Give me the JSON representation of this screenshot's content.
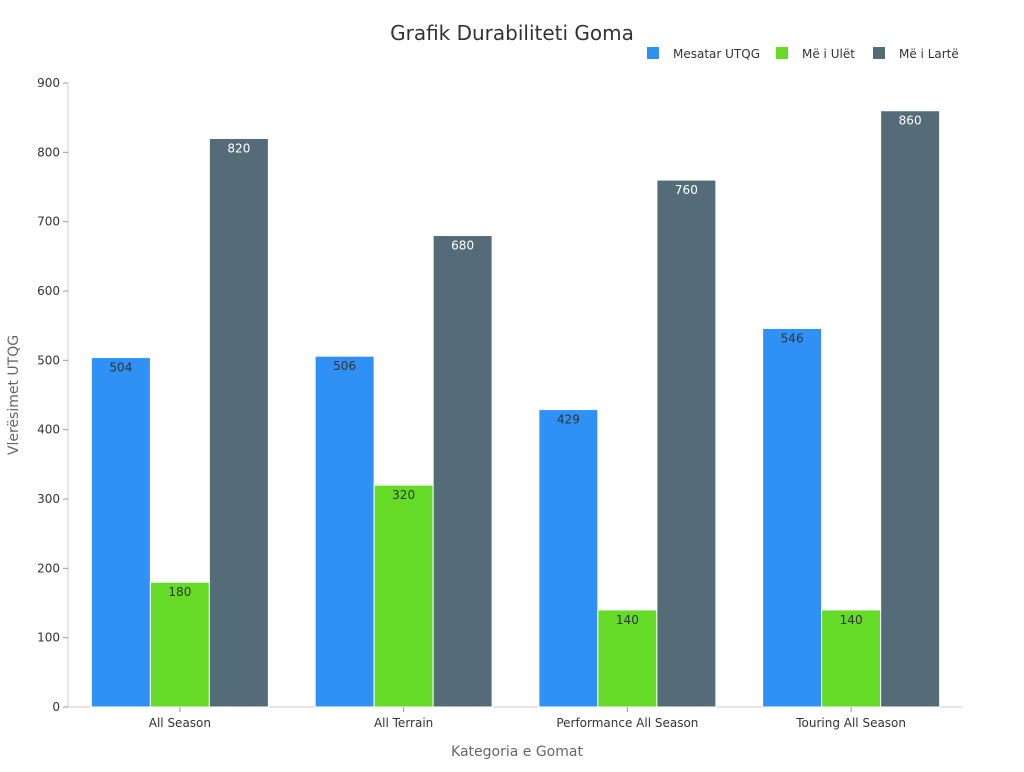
{
  "chart_data": {
    "type": "bar",
    "title": "Grafik Durabiliteti Goma",
    "xlabel": "Kategoria e Gomat",
    "ylabel": "Vlerësimet UTQG",
    "categories": [
      "All Season",
      "All Terrain",
      "Performance All Season",
      "Touring All Season"
    ],
    "series": [
      {
        "name": "Mesatar UTQG",
        "color": "#2F91F5",
        "label_color": "#333333",
        "values": [
          504,
          506,
          429,
          546
        ]
      },
      {
        "name": "Më i Ulët",
        "color": "#66DB27",
        "label_color": "#333333",
        "values": [
          180,
          320,
          140,
          140
        ]
      },
      {
        "name": "Më i Lartë",
        "color": "#546C77",
        "label_color": "#ffffff",
        "values": [
          820,
          680,
          760,
          860
        ]
      }
    ],
    "ylim": [
      0,
      900
    ],
    "yticks": [
      0,
      100,
      200,
      300,
      400,
      500,
      600,
      700,
      800,
      900
    ],
    "grid": false,
    "legend_position": "top-right"
  }
}
